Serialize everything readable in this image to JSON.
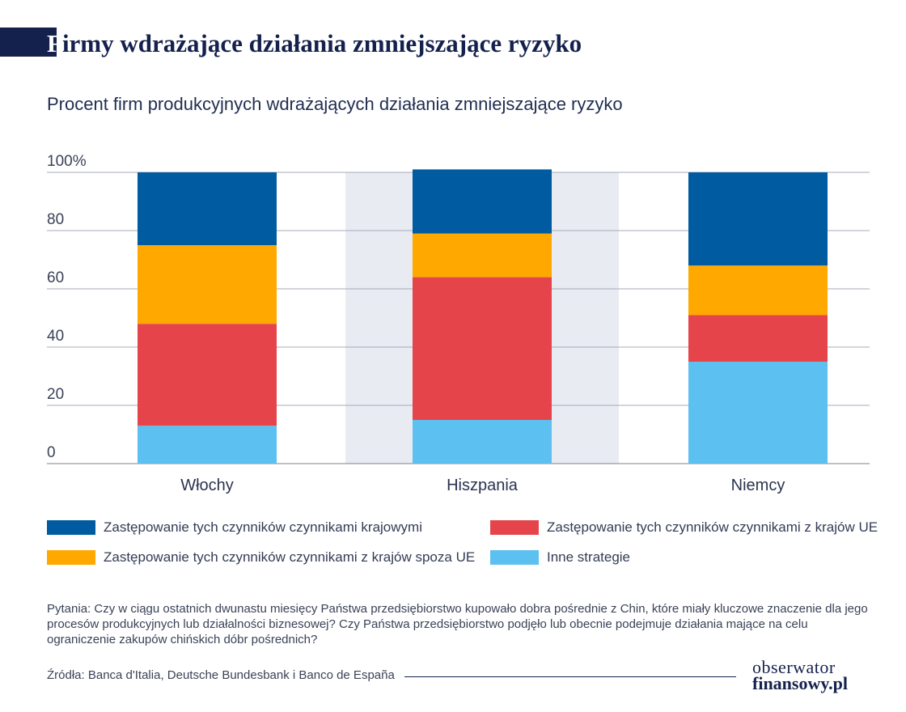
{
  "title_first_letter": "F",
  "title_rest": "irmy wdrażające działania zmniejszające ryzyko",
  "subtitle": "Procent firm produkcyjnych wdrażających działania zmniejszające ryzyko",
  "chart_data": {
    "type": "bar",
    "stacked": true,
    "categories": [
      "Włochy",
      "Hiszpania",
      "Niemcy"
    ],
    "highlighted_category": "Hiszpania",
    "ytick_labels": [
      "0",
      "20",
      "40",
      "60",
      "80",
      "100%"
    ],
    "yticks": [
      0,
      20,
      40,
      60,
      80,
      100
    ],
    "ylim": [
      0,
      100
    ],
    "grid": true,
    "series": [
      {
        "name": "Inne strategie",
        "color": "#5cc0f0",
        "values": [
          13,
          15,
          35
        ]
      },
      {
        "name": "Zastępowanie tych czynników czynnikami z krajów UE",
        "color": "#e5444a",
        "values": [
          35,
          49,
          16
        ]
      },
      {
        "name": "Zastępowanie tych czynników czynnikami z krajów spoza UE",
        "color": "#ffa800",
        "values": [
          27,
          15,
          17
        ]
      },
      {
        "name": "Zastępowanie tych czynników czynnikami krajowymi",
        "color": "#005ba0",
        "values": [
          25,
          22,
          32
        ]
      }
    ]
  },
  "legend": [
    {
      "label": "Zastępowanie tych czynników czynnikami krajowymi",
      "color": "#005ba0"
    },
    {
      "label": "Zastępowanie tych czynników czynnikami z krajów UE",
      "color": "#e5444a"
    },
    {
      "label": "Zastępowanie tych czynników czynnikami z krajów spoza UE",
      "color": "#ffa800"
    },
    {
      "label": "Inne strategie",
      "color": "#5cc0f0"
    }
  ],
  "question": "Pytania: Czy w ciągu ostatnich dwunastu miesięcy Państwa przedsiębiorstwo kupowało dobra pośrednie z Chin, które miały kluczowe znaczenie dla jego procesów produkcyjnych lub działalności biznesowej? Czy Państwa przedsiębiorstwo podjęło lub obecnie podejmuje działania mające na celu ograniczenie zakupów chińskich dóbr pośrednich?",
  "source": "Źródła: Banca d'Italia, Deutsche Bundesbank i Banco de España",
  "logo_line1": "obserwator",
  "logo_line2": "finansowy.pl"
}
